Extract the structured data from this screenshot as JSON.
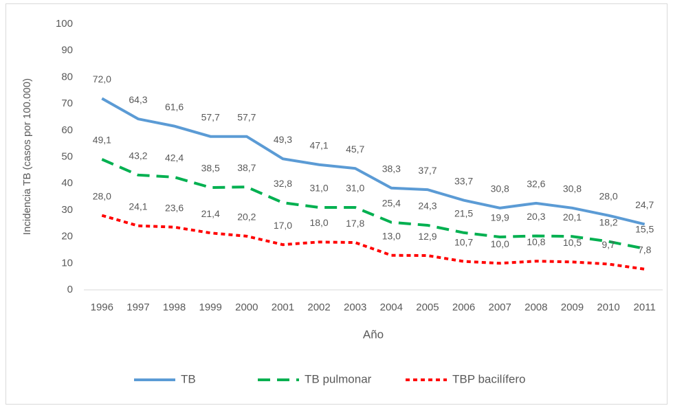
{
  "chart_data": {
    "type": "line",
    "y_label": "Incidencia TB (casos por 100.000)",
    "x_label": "Año",
    "categories": [
      "1996",
      "1997",
      "1998",
      "1999",
      "2000",
      "2001",
      "2002",
      "2003",
      "2004",
      "2005",
      "2006",
      "2007",
      "2008",
      "2009",
      "2010",
      "2011"
    ],
    "series": [
      {
        "name": "TB",
        "color": "#5b9bd5",
        "dash": "solid",
        "values": [
          72.0,
          64.3,
          61.6,
          57.7,
          57.7,
          49.3,
          47.1,
          45.7,
          38.3,
          37.7,
          33.7,
          30.8,
          32.6,
          30.8,
          28.0,
          24.7
        ],
        "value_labels": [
          "72,0",
          "64,3",
          "61,6",
          "57,7",
          "57,7",
          "49,3",
          "47,1",
          "45,7",
          "38,3",
          "37,7",
          "33,7",
          "30,8",
          "32,6",
          "30,8",
          "28,0",
          "24,7"
        ]
      },
      {
        "name": "TB pulmonar",
        "color": "#00b050",
        "dash": "long-dash",
        "values": [
          49.1,
          43.2,
          42.4,
          38.5,
          38.7,
          32.8,
          31.0,
          31.0,
          25.4,
          24.3,
          21.5,
          19.9,
          20.3,
          20.1,
          18.2,
          15.5
        ],
        "value_labels": [
          "49,1",
          "43,2",
          "42,4",
          "38,5",
          "38,7",
          "32,8",
          "31,0",
          "31,0",
          "25,4",
          "24,3",
          "21,5",
          "19,9",
          "20,3",
          "20,1",
          "18,2",
          "15,5"
        ]
      },
      {
        "name": "TBP bacilífero",
        "color": "#ff0000",
        "dash": "short-dash",
        "values": [
          28.0,
          24.1,
          23.6,
          21.4,
          20.2,
          17.0,
          18.0,
          17.8,
          13.0,
          12.9,
          10.7,
          10.0,
          10.8,
          10.5,
          9.7,
          7.8
        ],
        "value_labels": [
          "28,0",
          "24,1",
          "23,6",
          "21,4",
          "20,2",
          "17,0",
          "18,0",
          "17,8",
          "13,0",
          "12,9",
          "10,7",
          "10,0",
          "10,8",
          "10,5",
          "9,7",
          "7,8"
        ]
      }
    ],
    "ylim": [
      0,
      100
    ],
    "yticks": [
      0,
      10,
      20,
      30,
      40,
      50,
      60,
      70,
      80,
      90,
      100
    ],
    "grid": false,
    "legend": "bottom"
  }
}
